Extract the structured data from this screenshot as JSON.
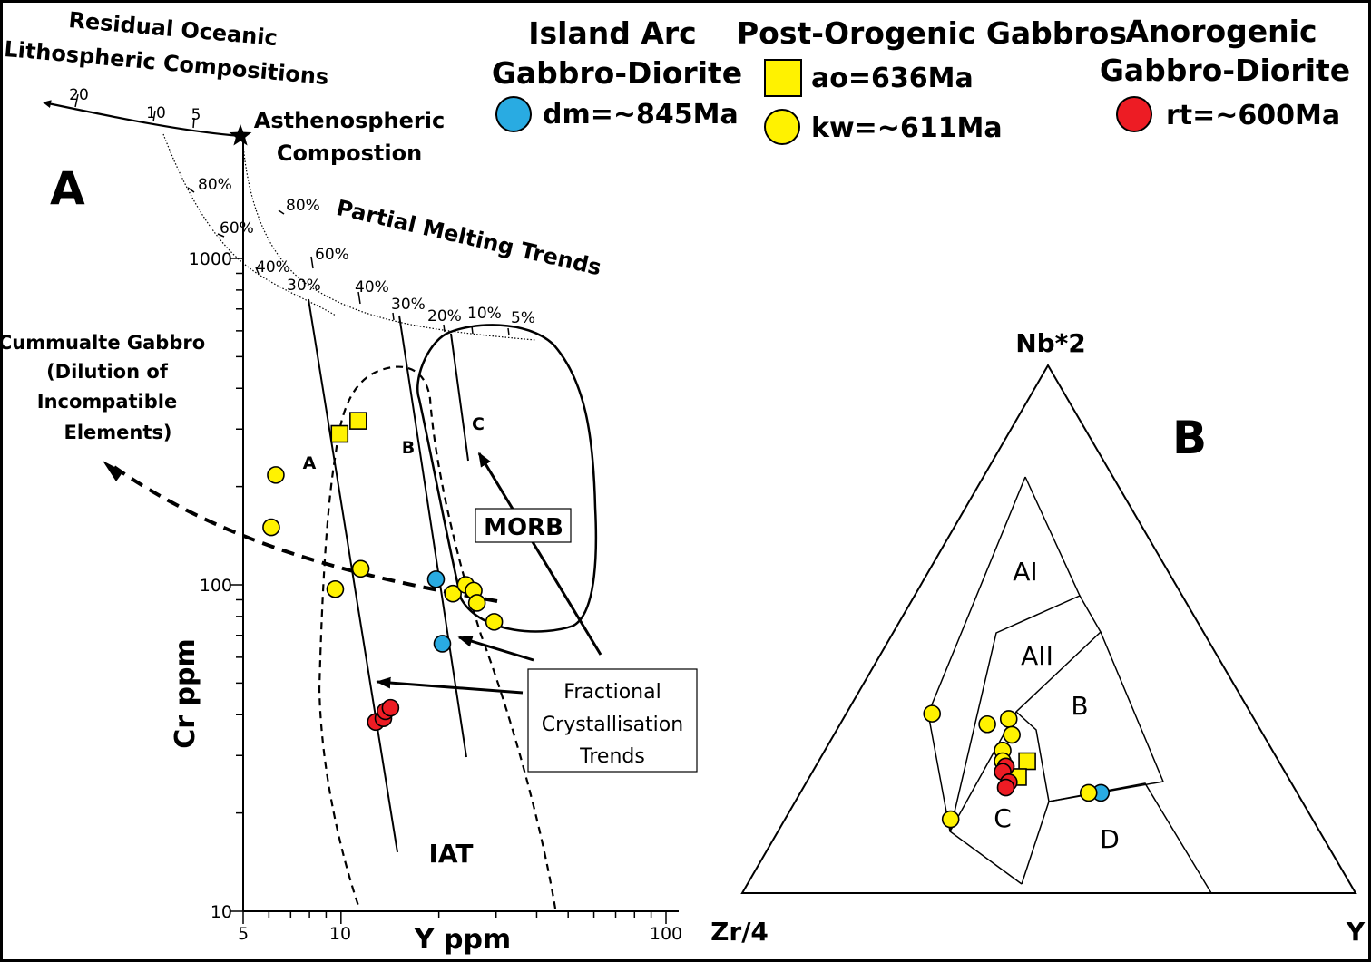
{
  "legend": {
    "island_arc": {
      "title": [
        "Island Arc",
        "Gabbro-Diorite"
      ],
      "entries": [
        {
          "label": "dm=~845Ma",
          "marker": "circle",
          "color": "#29abe2"
        }
      ]
    },
    "post_orogenic": {
      "title": [
        "Post-Orogenic Gabbros"
      ],
      "entries": [
        {
          "label": "ao=636Ma",
          "marker": "square",
          "color": "#fff200"
        },
        {
          "label": "kw=~611Ma",
          "marker": "circle",
          "color": "#fff200"
        }
      ]
    },
    "anorogenic": {
      "title": [
        "Anorogenic",
        "Gabbro-Diorite"
      ],
      "entries": [
        {
          "label": "rt=~600Ma",
          "marker": "circle",
          "color": "#ed1c24"
        }
      ]
    }
  },
  "colors": {
    "dm": "#29abe2",
    "ao": "#fff200",
    "kw": "#fff200",
    "rt": "#ed1c24"
  },
  "chart_data": [
    {
      "type": "scatter",
      "panel_label": "A",
      "xlabel": "Y ppm",
      "ylabel": "Cr ppm",
      "x_scale": "log",
      "y_scale": "log",
      "xlim": [
        5,
        100
      ],
      "ylim": [
        10,
        1000
      ],
      "x_ticks": [
        5,
        10,
        100
      ],
      "y_ticks": [
        10,
        100,
        1000
      ],
      "series": [
        {
          "name": "dm=~845Ma",
          "marker": "circle",
          "color": "#29abe2",
          "points": [
            [
              19.6,
              104
            ],
            [
              20.5,
              66
            ]
          ]
        },
        {
          "name": "ao=636Ma",
          "marker": "square",
          "color": "#fff200",
          "points": [
            [
              9.9,
              290
            ],
            [
              11.3,
              318
            ]
          ]
        },
        {
          "name": "kw=~611Ma",
          "marker": "circle",
          "color": "#fff200",
          "points": [
            [
              6.3,
              217
            ],
            [
              6.1,
              150
            ],
            [
              9.6,
              97
            ],
            [
              11.5,
              112
            ],
            [
              22.1,
              94
            ],
            [
              24.2,
              100
            ],
            [
              25.6,
              96
            ],
            [
              26.2,
              88
            ],
            [
              29.6,
              77
            ]
          ]
        },
        {
          "name": "rt=~600Ma",
          "marker": "circle",
          "color": "#ed1c24",
          "points": [
            [
              12.8,
              38
            ],
            [
              13.5,
              39
            ],
            [
              13.7,
              41
            ],
            [
              14.2,
              42
            ]
          ]
        }
      ],
      "annotations": {
        "residual": [
          "Residual Oceanic",
          "Lithospheric Compositions"
        ],
        "asthenospheric": [
          "Asthenospheric",
          "Compostion"
        ],
        "partial_melting": "Partial Melting Trends",
        "cumulate": [
          "Cummualte Gabbro",
          "(Dilution of",
          "Incompatible",
          "Elements)"
        ],
        "fractional": [
          "Fractional",
          "Crystallisation",
          "Trends"
        ],
        "residual_scale": [
          "20",
          "10",
          "5"
        ],
        "melt_left": [
          "80%",
          "60%",
          "40%",
          "30%"
        ],
        "melt_right": [
          "80%",
          "60%",
          "40%",
          "30%",
          "20%",
          "10%",
          "5%"
        ],
        "morb": "MORB",
        "iat": "IAT",
        "trend_labels": [
          "A",
          "B",
          "C"
        ]
      }
    },
    {
      "type": "scatter",
      "panel_label": "B",
      "subtype": "ternary",
      "apex_labels": {
        "top": "Nb*2",
        "left": "Zr/4",
        "right": "Y"
      },
      "field_labels": [
        "AI",
        "AII",
        "B",
        "C",
        "D"
      ],
      "series": [
        {
          "name": "dm=~845Ma",
          "marker": "circle",
          "color": "#29abe2",
          "points": [
            [
              0.45,
              0.24,
              0.31
            ],
            [
              0.32,
              0.19,
              0.49
            ]
          ]
        },
        {
          "name": "ao=636Ma",
          "marker": "square",
          "color": "#fff200",
          "points": [
            [
              0.41,
              0.25,
              0.34
            ],
            [
              0.44,
              0.22,
              0.34
            ]
          ]
        },
        {
          "name": "kw=~611Ma",
          "marker": "circle",
          "color": "#fff200",
          "points": [
            [
              0.52,
              0.34,
              0.14
            ],
            [
              0.4,
              0.33,
              0.27
            ],
            [
              0.44,
              0.32,
              0.24
            ],
            [
              0.41,
              0.3,
              0.29
            ],
            [
              0.44,
              0.27,
              0.29
            ],
            [
              0.45,
              0.25,
              0.3
            ],
            [
              0.59,
              0.14,
              0.27
            ],
            [
              0.34,
              0.19,
              0.47
            ]
          ]
        },
        {
          "name": "rt=~600Ma",
          "marker": "circle",
          "color": "#ed1c24",
          "points": [
            [
              0.45,
              0.24,
              0.31
            ],
            [
              0.46,
              0.23,
              0.31
            ],
            [
              0.46,
              0.21,
              0.33
            ],
            [
              0.47,
              0.2,
              0.33
            ]
          ]
        }
      ]
    }
  ]
}
